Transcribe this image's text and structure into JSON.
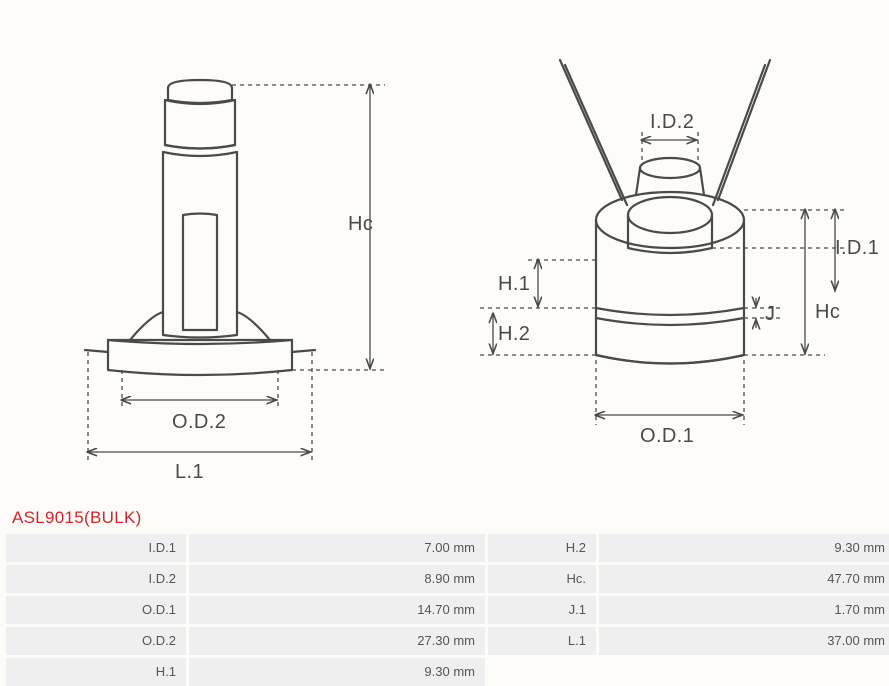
{
  "product": {
    "title": "ASL9015(BULK)"
  },
  "diagram": {
    "stroke": "#4a4a4a",
    "dash": "4,4",
    "labels": {
      "Hc_left": "Hc",
      "OD2": "O.D.2",
      "L1": "L.1",
      "ID2": "I.D.2",
      "ID1": "I.D.1",
      "Hc_right": "Hc",
      "J": "J",
      "H1": "H.1",
      "H2": "H.2",
      "OD1": "O.D.1"
    }
  },
  "specs": [
    {
      "k": "I.D.1",
      "v": "7.00 mm",
      "k2": "H.2",
      "v2": "9.30 mm"
    },
    {
      "k": "I.D.2",
      "v": "8.90 mm",
      "k2": "Hc.",
      "v2": "47.70 mm"
    },
    {
      "k": "O.D.1",
      "v": "14.70 mm",
      "k2": "J.1",
      "v2": "1.70 mm"
    },
    {
      "k": "O.D.2",
      "v": "27.30 mm",
      "k2": "L.1",
      "v2": "37.00 mm"
    },
    {
      "k": "H.1",
      "v": "9.30 mm",
      "k2": "",
      "v2": ""
    }
  ],
  "style": {
    "title_color": "#d6232a",
    "cell_bg": "#efefef",
    "page_bg": "#fdfcf8"
  }
}
